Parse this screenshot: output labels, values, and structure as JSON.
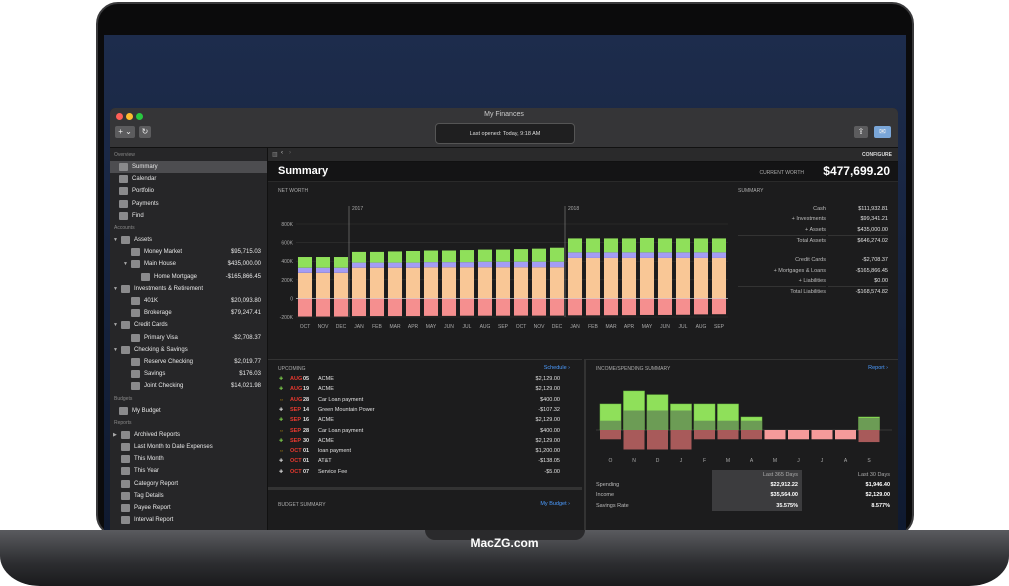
{
  "window": {
    "title": "My Finances",
    "last_opened": "Last opened: Today, 9:18 AM",
    "add_label": "+ ⌄",
    "refresh_label": "↻",
    "configure": "CONFIGURE"
  },
  "brand": "MacZG.com",
  "sidebar": {
    "sections": [
      {
        "title": "Overview",
        "items": [
          {
            "label": "Summary",
            "selected": true,
            "level": 0
          },
          {
            "label": "Calendar",
            "level": 0
          },
          {
            "label": "Portfolio",
            "level": 0
          },
          {
            "label": "Payments",
            "level": 0
          },
          {
            "label": "Find",
            "level": 0
          }
        ]
      },
      {
        "title": "Accounts",
        "items": [
          {
            "label": "Assets",
            "level": 0,
            "group": true
          },
          {
            "label": "Money Market",
            "value": "$95,715.03",
            "level": 1
          },
          {
            "label": "Main House",
            "value": "$435,000.00",
            "level": 1,
            "group": true
          },
          {
            "label": "Home Mortgage",
            "value": "-$165,866.45",
            "level": 2
          },
          {
            "label": "Investments & Retirement",
            "level": 0,
            "group": true
          },
          {
            "label": "401K",
            "value": "$20,093.80",
            "level": 1
          },
          {
            "label": "Brokerage",
            "value": "$79,247.41",
            "level": 1
          },
          {
            "label": "Credit Cards",
            "level": 0,
            "group": true
          },
          {
            "label": "Primary Visa",
            "value": "-$2,708.37",
            "level": 1
          },
          {
            "label": "Checking & Savings",
            "level": 0,
            "group": true
          },
          {
            "label": "Reserve Checking",
            "value": "$2,019.77",
            "level": 1
          },
          {
            "label": "Savings",
            "value": "$176.03",
            "level": 1
          },
          {
            "label": "Joint Checking",
            "value": "$14,021.98",
            "level": 1
          }
        ]
      },
      {
        "title": "Budgets",
        "items": [
          {
            "label": "My Budget",
            "level": 0
          }
        ]
      },
      {
        "title": "Reports",
        "items": [
          {
            "label": "Archived Reports",
            "level": 0,
            "group": true,
            "collapsed": true
          },
          {
            "label": "Last Month to Date Expenses",
            "level": 0
          },
          {
            "label": "This Month",
            "level": 0
          },
          {
            "label": "This Year",
            "level": 0
          },
          {
            "label": "Category Report",
            "level": 0
          },
          {
            "label": "Tag Details",
            "level": 0
          },
          {
            "label": "Payee Report",
            "level": 0
          },
          {
            "label": "Interval Report",
            "level": 0
          }
        ]
      }
    ]
  },
  "header": {
    "title": "Summary",
    "worth_label": "CURRENT WORTH",
    "worth": "$477,699.20"
  },
  "summary": {
    "title": "SUMMARY",
    "rows": [
      {
        "label": "Cash",
        "value": "$111,932.81"
      },
      {
        "label": "+ Investments",
        "value": "$99,341.21"
      },
      {
        "label": "+ Assets",
        "value": "$435,000.00"
      },
      {
        "label": "Total Assets",
        "value": "$646,274.02",
        "total": true
      },
      {
        "label": "Credit Cards",
        "value": "-$2,708.37",
        "gap": true
      },
      {
        "label": "+ Mortgages & Loans",
        "value": "-$165,866.45"
      },
      {
        "label": "+ Liabilities",
        "value": "$0.00"
      },
      {
        "label": "Total Liabilities",
        "value": "-$168,574.82",
        "total": true
      }
    ]
  },
  "chart_data": [
    {
      "type": "bar",
      "title": "NET WORTH",
      "stacked": true,
      "categories": [
        "OCT",
        "NOV",
        "DEC",
        "JAN",
        "FEB",
        "MAR",
        "APR",
        "MAY",
        "JUN",
        "JUL",
        "AUG",
        "SEP",
        "OCT",
        "NOV",
        "DEC",
        "JAN",
        "FEB",
        "MAR",
        "APR",
        "MAY",
        "JUN",
        "JUL",
        "AUG",
        "SEP"
      ],
      "year_markers": [
        {
          "label": "2017",
          "index": 3
        },
        {
          "label": "2018",
          "index": 15
        }
      ],
      "yticks": [
        "800K",
        "600K",
        "400K",
        "200K",
        "0",
        "-200K"
      ],
      "ylim": [
        -200000,
        800000
      ],
      "colors": {
        "assets": "#f9c796",
        "investments": "#a49cf5",
        "cash": "#8fe05a",
        "liabilities": "#f58f8f"
      },
      "series": [
        {
          "name": "Assets",
          "values": [
            275000,
            275000,
            275000,
            330000,
            330000,
            330000,
            330000,
            335000,
            335000,
            335000,
            335000,
            335000,
            335000,
            335000,
            335000,
            435000,
            435000,
            435000,
            435000,
            435000,
            435000,
            435000,
            435000,
            435000
          ]
        },
        {
          "name": "Investments",
          "values": [
            55000,
            55000,
            55000,
            55000,
            55000,
            55000,
            55000,
            55000,
            55000,
            55000,
            60000,
            60000,
            60000,
            60000,
            60000,
            60000,
            60000,
            60000,
            60000,
            60000,
            60000,
            60000,
            60000,
            60000
          ]
        },
        {
          "name": "Cash",
          "values": [
            115000,
            115000,
            115000,
            115000,
            115000,
            120000,
            125000,
            125000,
            125000,
            130000,
            130000,
            130000,
            135000,
            140000,
            150000,
            150000,
            150000,
            150000,
            150000,
            155000,
            150000,
            150000,
            150000,
            150000
          ]
        },
        {
          "name": "Liabilities",
          "values": [
            -195000,
            -195000,
            -195000,
            -190000,
            -190000,
            -190000,
            -190000,
            -188000,
            -188000,
            -186000,
            -186000,
            -186000,
            -185000,
            -185000,
            -185000,
            -182000,
            -182000,
            -181000,
            -180000,
            -178000,
            -178000,
            -176000,
            -172000,
            -170000
          ]
        }
      ]
    },
    {
      "type": "bar",
      "title": "INCOME/SPENDING SUMMARY",
      "categories": [
        "O",
        "N",
        "D",
        "J",
        "F",
        "M",
        "A",
        "M",
        "J",
        "J",
        "A",
        "S"
      ],
      "series": [
        {
          "name": "Income",
          "values": [
            2800,
            4200,
            3800,
            2800,
            2800,
            2800,
            1400,
            0,
            0,
            0,
            0,
            1400
          ]
        },
        {
          "name": "Spending",
          "values": [
            1000,
            2100,
            2100,
            2100,
            1000,
            1000,
            1000,
            1000,
            1000,
            1000,
            1000,
            1300
          ]
        }
      ]
    }
  ],
  "income": {
    "report_link": "Report ›",
    "col1": "Last 365 Days",
    "col2": "Last 30 Days",
    "rows": [
      {
        "label": "Spending",
        "v1": "$22,912.22",
        "v2": "$1,946.40"
      },
      {
        "label": "Income",
        "v1": "$35,564.00",
        "v2": "$2,129.00"
      },
      {
        "label": "Savings Rate",
        "v1": "35.575%",
        "v2": "8.577%"
      }
    ]
  },
  "upcoming": {
    "title": "UPCOMING",
    "link": "Schedule ›",
    "rows": [
      {
        "mon": "AUG",
        "day": "05",
        "payee": "ACME",
        "amount": "$2,129.00",
        "kind": "income"
      },
      {
        "mon": "AUG",
        "day": "19",
        "payee": "ACME",
        "amount": "$2,129.00",
        "kind": "income"
      },
      {
        "mon": "AUG",
        "day": "28",
        "payee": "Car  Loan payment",
        "amount": "$400.00",
        "kind": "transfer"
      },
      {
        "mon": "SEP",
        "day": "14",
        "payee": "Green Mountain Power",
        "amount": "-$107.32",
        "kind": "expense"
      },
      {
        "mon": "SEP",
        "day": "16",
        "payee": "ACME",
        "amount": "$2,129.00",
        "kind": "income"
      },
      {
        "mon": "SEP",
        "day": "28",
        "payee": "Car  Loan payment",
        "amount": "$400.00",
        "kind": "transfer"
      },
      {
        "mon": "SEP",
        "day": "30",
        "payee": "ACME",
        "amount": "$2,129.00",
        "kind": "income"
      },
      {
        "mon": "OCT",
        "day": "01",
        "payee": "loan payment",
        "amount": "$1,200.00",
        "kind": "transfer"
      },
      {
        "mon": "OCT",
        "day": "01",
        "payee": "AT&T",
        "amount": "-$138.05",
        "kind": "expense"
      },
      {
        "mon": "OCT",
        "day": "07",
        "payee": "Service Fee",
        "amount": "-$5.00",
        "kind": "expense"
      }
    ]
  },
  "budget": {
    "title": "BUDGET SUMMARY",
    "link": "My Budget ›"
  }
}
